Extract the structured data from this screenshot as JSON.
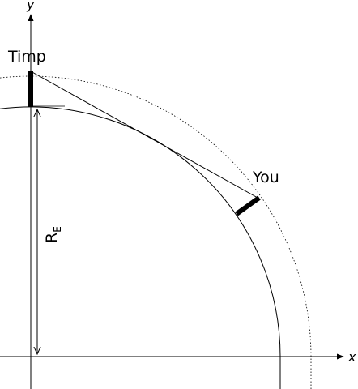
{
  "axes": {
    "x_label": "x",
    "y_label": "y"
  },
  "labels": {
    "timp": "Timp",
    "you": "You",
    "radius_main": "R",
    "radius_sub": "E"
  },
  "colors": {
    "ink": "#000000",
    "background": "#ffffff"
  }
}
